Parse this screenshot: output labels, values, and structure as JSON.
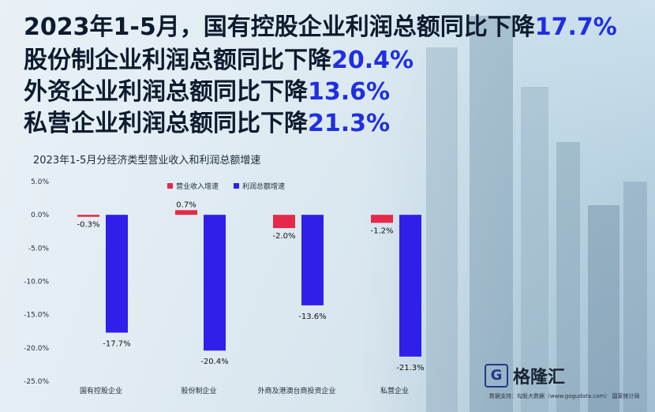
{
  "headlines": [
    {
      "text": "2023年1-5月，国有控股企业利润总额同比下降",
      "pct": "17.7%"
    },
    {
      "text": "股份制企业利润总额同比下降",
      "pct": "20.4%"
    },
    {
      "text": "外资企业利润总额同比下降",
      "pct": "13.6%"
    },
    {
      "text": "私营企业利润总额同比下降",
      "pct": "21.3%"
    }
  ],
  "logo": {
    "mark": "G",
    "name": "格隆汇"
  },
  "source": "数据支持：勾股大数据（www.gogudata.com）  国家统计局",
  "colors": {
    "revenue": "#e5294a",
    "profit": "#2f1fe8",
    "accent": "#1f2fe0"
  },
  "chart_data": {
    "type": "bar",
    "title": "2023年1-5月分经济类型营业收入和利润总额增速",
    "categories": [
      "国有控股企业",
      "股份制企业",
      "外商及港澳台商投资企业",
      "私营企业"
    ],
    "series": [
      {
        "name": "营业收入增速",
        "values": [
          -0.3,
          0.7,
          -2.0,
          -1.2
        ],
        "labels": [
          "-0.3%",
          "0.7%",
          "-2.0%",
          "-1.2%"
        ]
      },
      {
        "name": "利润总额增速",
        "values": [
          -17.7,
          -20.4,
          -13.6,
          -21.3
        ],
        "labels": [
          "-17.7%",
          "-20.4%",
          "-13.6%",
          "-21.3%"
        ]
      }
    ],
    "yticks": [
      5.0,
      0.0,
      -5.0,
      -10.0,
      -15.0,
      -20.0,
      -25.0
    ],
    "ytick_labels": [
      "5.0%",
      "0.0%",
      "-5.0%",
      "-10.0%",
      "-15.0%",
      "-20.0%",
      "-25.0%"
    ],
    "ylim": [
      -25,
      5
    ],
    "legend": "top-center",
    "grid": false
  }
}
